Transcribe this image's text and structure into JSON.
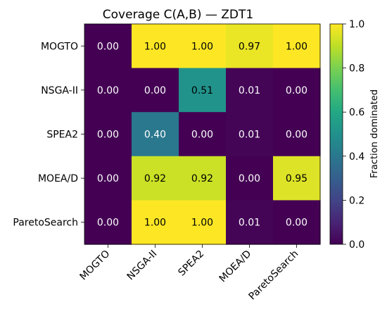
{
  "chart_data": {
    "type": "heatmap",
    "title": "Coverage C(A,B) — ZDT1",
    "rows": [
      "MOGTO",
      "NSGA-II",
      "SPEA2",
      "MOEA/D",
      "ParetoSearch"
    ],
    "columns": [
      "MOGTO",
      "NSGA-II",
      "SPEA2",
      "MOEA/D",
      "ParetoSearch"
    ],
    "values": [
      [
        0.0,
        1.0,
        1.0,
        0.97,
        1.0
      ],
      [
        0.0,
        0.0,
        0.51,
        0.01,
        0.0
      ],
      [
        0.0,
        0.4,
        0.0,
        0.01,
        0.0
      ],
      [
        0.0,
        0.92,
        0.92,
        0.0,
        0.95
      ],
      [
        0.0,
        1.0,
        1.0,
        0.01,
        0.0
      ]
    ],
    "value_format_decimals": 2,
    "colorbar": {
      "label": "Fraction dominated",
      "range": [
        0.0,
        1.0
      ],
      "ticks": [
        "0.0",
        "0.2",
        "0.4",
        "0.6",
        "0.8",
        "1.0"
      ],
      "colormap": "viridis"
    }
  }
}
